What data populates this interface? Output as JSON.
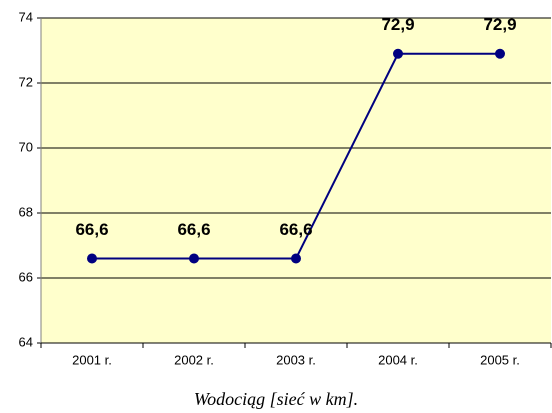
{
  "chart_data": {
    "type": "line",
    "caption": "Wodociąg [sieć w km].",
    "categories": [
      "2001 r.",
      "2002 r.",
      "2003 r.",
      "2004 r.",
      "2005 r."
    ],
    "series": [
      {
        "name": null,
        "color": "#000080",
        "values": [
          66.6,
          66.6,
          66.6,
          72.9,
          72.9
        ],
        "value_labels": [
          "66,6",
          "66,6",
          "66,6",
          "72,9",
          "72,9"
        ]
      }
    ],
    "ylim": [
      64,
      74
    ],
    "yticks": [
      64,
      66,
      68,
      70,
      72,
      74
    ],
    "grid": true,
    "plot_background": "#FFFFCC"
  }
}
